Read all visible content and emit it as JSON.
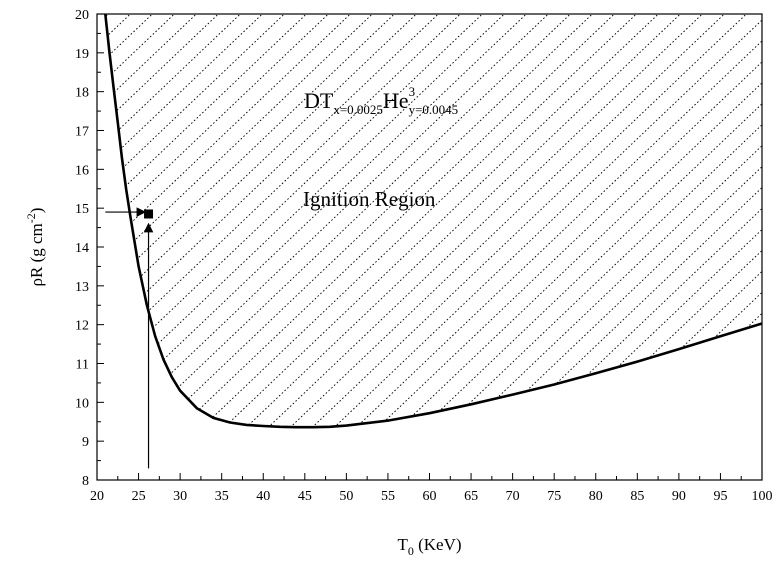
{
  "chart_data": {
    "type": "line",
    "xlabel": {
      "main": "T",
      "sub": "0",
      "rest": " (KeV)"
    },
    "ylabel": {
      "main": "ρR (g cm",
      "sup": "-2",
      "rest": ")"
    },
    "xlim": [
      20,
      100
    ],
    "ylim": [
      8,
      20
    ],
    "x_ticks": [
      20,
      25,
      30,
      35,
      40,
      45,
      50,
      55,
      60,
      65,
      70,
      75,
      80,
      85,
      90,
      95,
      100
    ],
    "y_ticks": [
      8,
      9,
      10,
      11,
      12,
      13,
      14,
      15,
      16,
      17,
      18,
      19,
      20
    ],
    "grid": false,
    "series": [
      {
        "x": [
          21.0,
          21.5,
          22.0,
          22.5,
          23.0,
          23.5,
          24.0,
          25.0,
          26.0,
          27.0,
          28.0,
          29.0,
          30.0,
          32.0,
          34.0,
          36.0,
          38.0,
          40.0,
          42.0,
          44.0,
          46.0,
          48.0,
          50.0,
          55.0,
          60.0,
          65.0,
          70.0,
          75.0,
          80.0,
          85.0,
          90.0,
          95.0,
          100.0
        ],
        "y": [
          20.0,
          19.0,
          18.1,
          17.2,
          16.3,
          15.5,
          14.8,
          13.5,
          12.5,
          11.7,
          11.1,
          10.65,
          10.3,
          9.85,
          9.6,
          9.48,
          9.42,
          9.39,
          9.37,
          9.36,
          9.36,
          9.37,
          9.4,
          9.53,
          9.72,
          9.95,
          10.2,
          10.46,
          10.75,
          11.05,
          11.37,
          11.7,
          12.03
        ]
      }
    ],
    "region_label": "Ignition Region",
    "formula": {
      "base": "DT",
      "sub_x": "x=0.0025",
      "mid": "He",
      "sup": "3",
      "sub_y": "y=0.0045"
    },
    "marker": {
      "x": 26.2,
      "y": 14.85
    },
    "arrows": [
      {
        "from": [
          21.0,
          14.9
        ],
        "to": [
          25.8,
          14.9
        ]
      },
      {
        "from": [
          26.2,
          8.3
        ],
        "to": [
          26.2,
          14.6
        ]
      }
    ]
  }
}
